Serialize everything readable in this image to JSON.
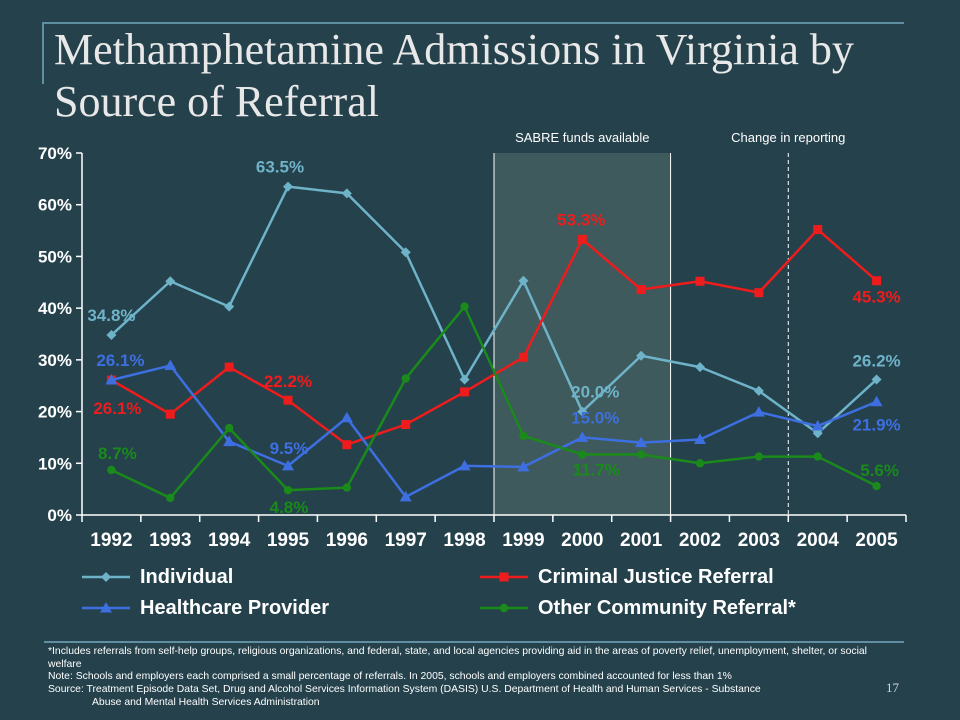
{
  "slide": {
    "title": "Methamphetamine Admissions in Virginia by Source of Referral",
    "page_number": "17"
  },
  "annotations": {
    "sabre": "SABRE funds available",
    "reporting": "Change in reporting"
  },
  "footnotes": [
    "*Includes referrals from self-help groups, religious organizations, and federal, state, and local agencies providing aid in the areas of poverty relief, unemployment, shelter, or  social welfare",
    "Note: Schools and employers each comprised a small percentage of referrals. In 2005, schools and employers combined accounted for  less than 1%",
    "Source: Treatment Episode Data Set, Drug and Alcohol Services Information System (DASIS) U.S. Department of Health and Human Services - Substance",
    "Abuse and Mental Health Services Administration"
  ],
  "colors": {
    "background": "#24414c",
    "individual": "#6fb3c9",
    "criminal_justice": "#ee1c1c",
    "healthcare": "#3e6fe0",
    "other_community": "#1a8a1a",
    "sabre_band": "#3e5a5c"
  },
  "chart_data": {
    "type": "line",
    "categories": [
      "1992",
      "1993",
      "1994",
      "1995",
      "1996",
      "1997",
      "1998",
      "1999",
      "2000",
      "2001",
      "2002",
      "2003",
      "2004",
      "2005"
    ],
    "ylim": [
      0,
      70
    ],
    "y_ticks": [
      "0%",
      "10%",
      "20%",
      "30%",
      "40%",
      "50%",
      "60%",
      "70%"
    ],
    "grid": false,
    "legend_position": "bottom",
    "highlight_band": {
      "from": "1999",
      "to": "2002",
      "label": "SABRE funds available"
    },
    "divider": {
      "between": [
        "2003",
        "2004"
      ],
      "label": "Change in reporting"
    },
    "series": [
      {
        "name": "Individual",
        "marker": "diamond",
        "values": [
          34.8,
          45.2,
          40.3,
          63.5,
          62.2,
          50.8,
          26.2,
          45.3,
          20.0,
          30.8,
          28.6,
          24.0,
          15.8,
          26.2
        ],
        "labels": {
          "1992": "34.8%",
          "1995": "63.5%",
          "2000": "20.0%",
          "2005": "26.2%"
        }
      },
      {
        "name": "Criminal Justice Referral",
        "marker": "square",
        "values": [
          26.1,
          19.5,
          28.6,
          22.2,
          13.6,
          17.5,
          23.8,
          30.5,
          53.3,
          43.6,
          45.2,
          43.0,
          55.2,
          45.3
        ],
        "labels": {
          "1992": "26.1%",
          "1995": "22.2%",
          "2000": "53.3%",
          "2005": "45.3%"
        }
      },
      {
        "name": "Healthcare Provider",
        "marker": "triangle",
        "values": [
          26.1,
          28.9,
          14.2,
          9.5,
          18.8,
          3.5,
          9.5,
          9.3,
          15.0,
          14.0,
          14.6,
          19.9,
          17.2,
          21.9
        ],
        "labels": {
          "1992": "26.1%",
          "1995": "9.5%",
          "2000": "15.0%",
          "2005": "21.9%"
        }
      },
      {
        "name": "Other Community Referral*",
        "marker": "circle",
        "values": [
          8.7,
          3.3,
          16.8,
          4.8,
          5.3,
          26.4,
          40.3,
          15.3,
          11.7,
          11.7,
          10.0,
          11.3,
          11.3,
          5.6
        ],
        "labels": {
          "1992": "8.7%",
          "1995": "4.8%",
          "2000": "11.7%",
          "2005": "5.6%"
        }
      }
    ]
  }
}
